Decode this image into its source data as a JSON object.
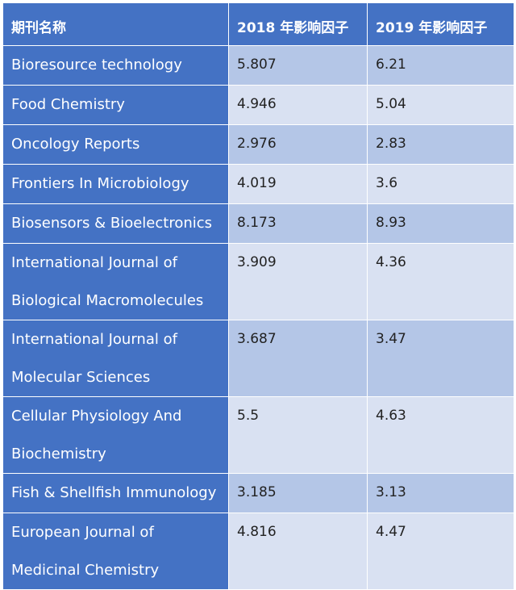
{
  "table": {
    "headers": [
      "期刊名称",
      "2018 年影响因子",
      "2019 年影响因子"
    ],
    "rows": [
      {
        "name_lines": [
          "Bioresource technology"
        ],
        "if2018": "5.807",
        "if2019": "6.21"
      },
      {
        "name_lines": [
          "Food Chemistry"
        ],
        "if2018": "4.946",
        "if2019": "5.04"
      },
      {
        "name_lines": [
          "Oncology Reports"
        ],
        "if2018": "2.976",
        "if2019": "2.83"
      },
      {
        "name_lines": [
          "Frontiers In Microbiology"
        ],
        "if2018": "4.019",
        "if2019": "3.6"
      },
      {
        "name_lines": [
          "Biosensors & Bioelectronics"
        ],
        "if2018": "8.173",
        "if2019": "8.93"
      },
      {
        "name_lines": [
          "International Journal of",
          "Biological Macromolecules"
        ],
        "if2018": "3.909",
        "if2019": "4.36"
      },
      {
        "name_lines": [
          "International Journal of",
          "Molecular Sciences"
        ],
        "if2018": "3.687",
        "if2019": "3.47"
      },
      {
        "name_lines": [
          "Cellular Physiology And",
          "Biochemistry"
        ],
        "if2018": "5.5",
        "if2019": "4.63"
      },
      {
        "name_lines": [
          "Fish & Shellfish Immunology"
        ],
        "if2018": "3.185",
        "if2019": "3.13"
      },
      {
        "name_lines": [
          "European Journal of",
          "Medicinal Chemistry"
        ],
        "if2018": "4.816",
        "if2019": "4.47"
      }
    ]
  },
  "colors": {
    "header_bg": "#4472c4",
    "name_col_bg": "#4472c4",
    "band_dark": "#b4c6e7",
    "band_light": "#d9e1f2",
    "text_light": "#ffffff",
    "text_dark": "#222222"
  }
}
